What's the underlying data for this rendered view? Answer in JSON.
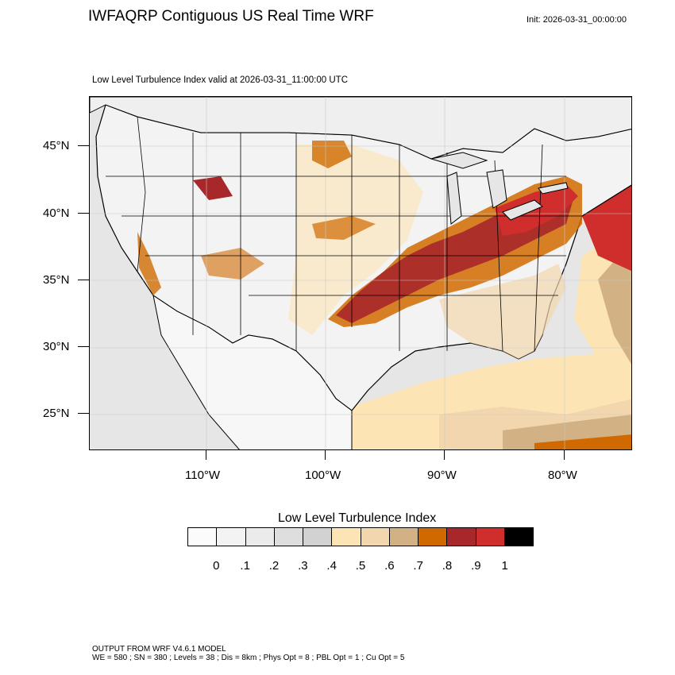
{
  "header": {
    "title": "IWFAQRP Contiguous US Real Time WRF",
    "init": "Init: 2026-03-31_00:00:00",
    "subtitle": "Low Level Turbulence Index valid at 2026-03-31_11:00:00 UTC"
  },
  "map": {
    "lat_labels": [
      "45°N",
      "40°N",
      "35°N",
      "30°N",
      "25°N"
    ],
    "lon_labels": [
      "110°W",
      "100°W",
      "90°W",
      "80°W"
    ]
  },
  "colorbar": {
    "title": "Low Level Turbulence Index",
    "labels": [
      "0",
      ".1",
      ".2",
      ".3",
      ".4",
      ".5",
      ".6",
      ".7",
      ".8",
      ".9",
      "1"
    ],
    "colors": [
      "#fbfbfb",
      "#f3f3f3",
      "#ebebeb",
      "#dedede",
      "#d2d2d2",
      "#fde4b4",
      "#f2d7ae",
      "#d2b284",
      "#d06a00",
      "#a8272a",
      "#d02d2d",
      "#000000"
    ]
  },
  "footer": {
    "line1": "OUTPUT FROM WRF V4.6.1 MODEL",
    "line2": "WE = 580 ; SN = 380 ; Levels = 38 ; Dis = 8km ; Phys Opt = 8 ; PBL Opt = 1 ; Cu Opt = 5"
  }
}
